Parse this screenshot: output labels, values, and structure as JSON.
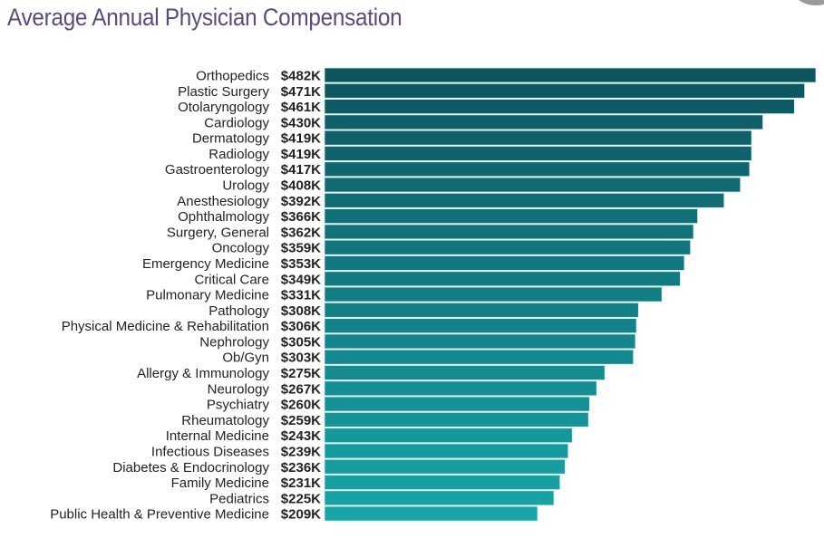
{
  "chart_data": {
    "type": "bar",
    "orientation": "horizontal",
    "title": "Average Annual Physician Compensation",
    "categories": [
      "Orthopedics",
      "Plastic Surgery",
      "Otolaryngology",
      "Cardiology",
      "Dermatology",
      "Radiology",
      "Gastroenterology",
      "Urology",
      "Anesthesiology",
      "Ophthalmology",
      "Surgery, General",
      "Oncology",
      "Emergency Medicine",
      "Critical Care",
      "Pulmonary Medicine",
      "Pathology",
      "Physical Medicine & Rehabilitation",
      "Nephrology",
      "Ob/Gyn",
      "Allergy & Immunology",
      "Neurology",
      "Psychiatry",
      "Rheumatology",
      "Internal Medicine",
      "Infectious Diseases",
      "Diabetes & Endocrinology",
      "Family Medicine",
      "Pediatrics",
      "Public Health & Preventive Medicine"
    ],
    "values": [
      482,
      471,
      461,
      430,
      419,
      419,
      417,
      408,
      392,
      366,
      362,
      359,
      353,
      349,
      331,
      308,
      306,
      305,
      303,
      275,
      267,
      260,
      259,
      243,
      239,
      236,
      231,
      225,
      209
    ],
    "value_labels": [
      "$482K",
      "$471K",
      "$461K",
      "$430K",
      "$419K",
      "$419K",
      "$417K",
      "$408K",
      "$392K",
      "$366K",
      "$362K",
      "$359K",
      "$353K",
      "$349K",
      "$331K",
      "$308K",
      "$306K",
      "$305K",
      "$303K",
      "$275K",
      "$267K",
      "$260K",
      "$259K",
      "$243K",
      "$239K",
      "$236K",
      "$231K",
      "$225K",
      "$209K"
    ],
    "unit": "thousand USD",
    "xlim": [
      0,
      482
    ],
    "grid": false,
    "legend": "none",
    "colors": {
      "top": "#0e5560",
      "bottom": "#18a5a7",
      "title": "#5b4a7a"
    }
  }
}
